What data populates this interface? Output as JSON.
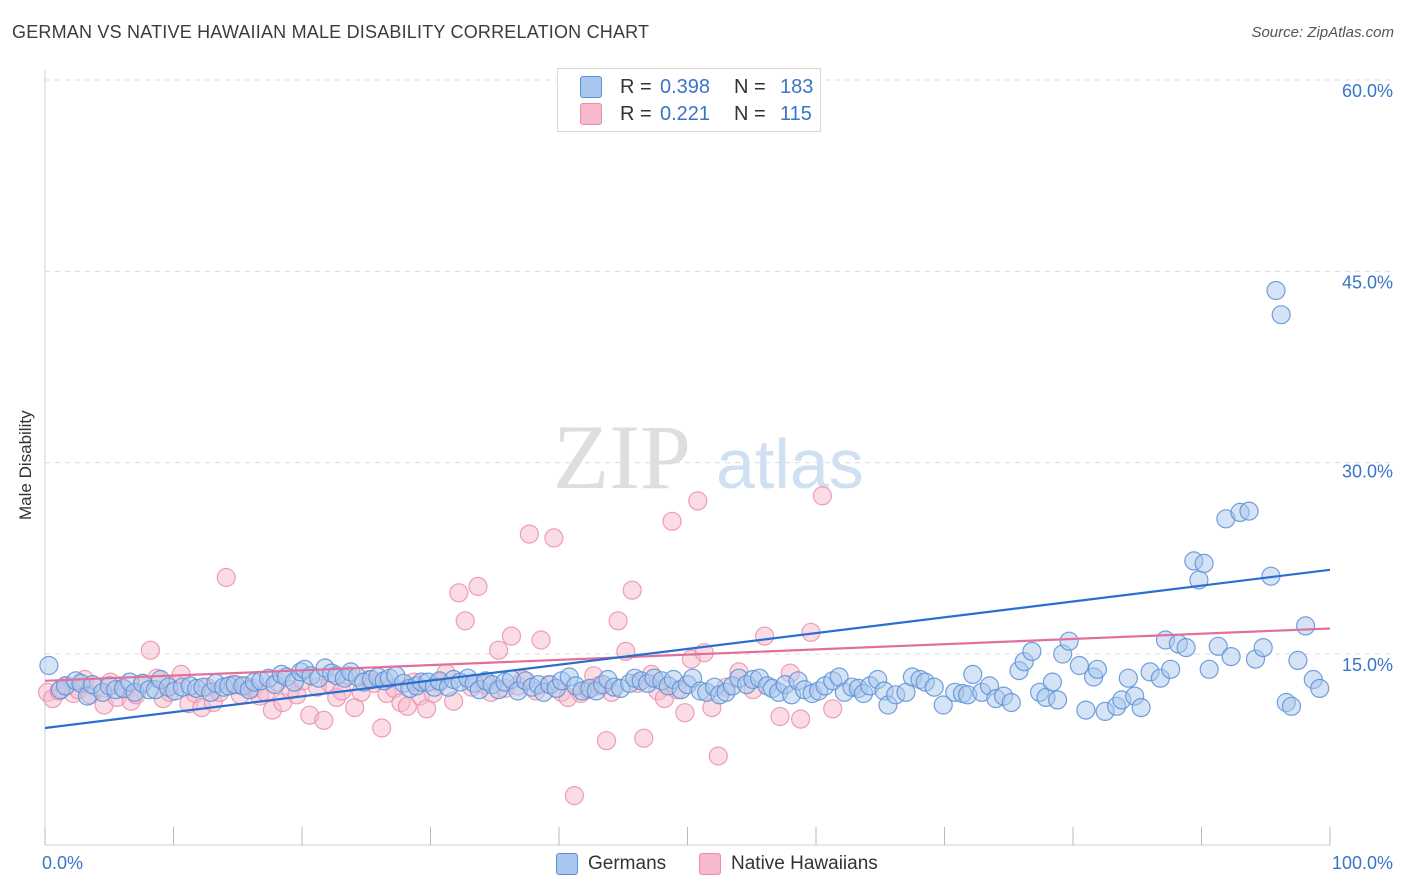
{
  "title": "GERMAN VS NATIVE HAWAIIAN MALE DISABILITY CORRELATION CHART",
  "source": "Source: ZipAtlas.com",
  "watermark": {
    "zip": "ZIP",
    "atlas": "atlas"
  },
  "legend": {
    "r_label": "R =",
    "n_label": "N =",
    "germans": {
      "r": "0.398",
      "n": "183",
      "color": "#a9c7ee"
    },
    "hawaiians": {
      "r": "0.221",
      "n": "115",
      "color": "#f7b9cc"
    }
  },
  "bottom_legend": {
    "germans": "Germans",
    "hawaiians": "Native Hawaiians"
  },
  "chart_data": {
    "type": "scatter",
    "xlabel": "",
    "ylabel": "Male Disability",
    "xlim": [
      0,
      100
    ],
    "ylim": [
      0,
      60
    ],
    "x_tick_labels": [
      "0.0%",
      "100.0%"
    ],
    "y_ticks": [
      15,
      30,
      45,
      60
    ],
    "y_tick_labels": [
      "15.0%",
      "30.0%",
      "45.0%",
      "60.0%"
    ],
    "colors": {
      "germans_fill": "#a9c7ee",
      "germans_stroke": "#5b8fd6",
      "germans_line": "#2a6fd0",
      "hawaiians_fill": "#f7b9cc",
      "hawaiians_stroke": "#e98fac",
      "hawaiians_line": "#e0709a",
      "axis_text": "#3a74c8"
    },
    "series": [
      {
        "name": "Germans",
        "trend": [
          [
            0,
            9.2
          ],
          [
            100,
            21.6
          ]
        ],
        "points": [
          [
            0.3,
            14.1
          ],
          [
            1.2,
            12.2
          ],
          [
            1.6,
            12.5
          ],
          [
            2.4,
            12.9
          ],
          [
            2.8,
            12.7
          ],
          [
            3.3,
            11.7
          ],
          [
            3.7,
            12.6
          ],
          [
            4.5,
            12.0
          ],
          [
            5.0,
            12.5
          ],
          [
            5.5,
            12.2
          ],
          [
            6.1,
            12.3
          ],
          [
            6.6,
            12.8
          ],
          [
            7.0,
            12.0
          ],
          [
            7.6,
            12.7
          ],
          [
            8.1,
            12.2
          ],
          [
            8.6,
            12.2
          ],
          [
            9.0,
            13.0
          ],
          [
            9.6,
            12.4
          ],
          [
            10.1,
            12.1
          ],
          [
            10.7,
            12.4
          ],
          [
            11.3,
            12.5
          ],
          [
            11.8,
            12.3
          ],
          [
            12.3,
            12.4
          ],
          [
            12.9,
            12.0
          ],
          [
            13.3,
            12.7
          ],
          [
            13.9,
            12.4
          ],
          [
            14.3,
            12.5
          ],
          [
            14.8,
            12.6
          ],
          [
            15.4,
            12.5
          ],
          [
            15.9,
            12.2
          ],
          [
            16.3,
            12.8
          ],
          [
            16.8,
            12.9
          ],
          [
            17.4,
            13.1
          ],
          [
            17.9,
            12.6
          ],
          [
            18.4,
            13.4
          ],
          [
            18.8,
            13.2
          ],
          [
            19.4,
            12.8
          ],
          [
            19.9,
            13.6
          ],
          [
            20.2,
            13.8
          ],
          [
            20.7,
            13.3
          ],
          [
            21.3,
            13.1
          ],
          [
            21.8,
            13.9
          ],
          [
            22.3,
            13.5
          ],
          [
            22.7,
            13.3
          ],
          [
            23.3,
            13.1
          ],
          [
            23.8,
            13.6
          ],
          [
            24.3,
            13.2
          ],
          [
            24.8,
            12.8
          ],
          [
            25.4,
            13.0
          ],
          [
            25.9,
            13.2
          ],
          [
            26.4,
            12.9
          ],
          [
            26.8,
            13.1
          ],
          [
            27.3,
            13.3
          ],
          [
            27.9,
            12.7
          ],
          [
            28.4,
            12.3
          ],
          [
            28.9,
            12.5
          ],
          [
            29.3,
            12.8
          ],
          [
            29.8,
            12.8
          ],
          [
            30.3,
            12.4
          ],
          [
            30.7,
            12.9
          ],
          [
            31.4,
            12.4
          ],
          [
            31.8,
            13.0
          ],
          [
            32.3,
            12.8
          ],
          [
            32.9,
            13.1
          ],
          [
            33.4,
            12.7
          ],
          [
            33.8,
            12.2
          ],
          [
            34.3,
            12.9
          ],
          [
            34.8,
            12.6
          ],
          [
            35.3,
            12.2
          ],
          [
            35.8,
            12.8
          ],
          [
            36.3,
            13.0
          ],
          [
            36.8,
            12.1
          ],
          [
            37.4,
            12.9
          ],
          [
            37.9,
            12.4
          ],
          [
            38.4,
            12.6
          ],
          [
            38.8,
            12.0
          ],
          [
            39.3,
            12.6
          ],
          [
            39.8,
            12.3
          ],
          [
            40.2,
            12.9
          ],
          [
            40.8,
            13.2
          ],
          [
            41.3,
            12.5
          ],
          [
            41.8,
            12.1
          ],
          [
            42.4,
            12.3
          ],
          [
            42.9,
            12.1
          ],
          [
            43.4,
            12.6
          ],
          [
            43.8,
            13.0
          ],
          [
            44.3,
            12.4
          ],
          [
            44.8,
            12.3
          ],
          [
            45.5,
            12.7
          ],
          [
            45.9,
            13.1
          ],
          [
            46.4,
            12.9
          ],
          [
            46.9,
            12.7
          ],
          [
            47.4,
            13.1
          ],
          [
            48.0,
            12.9
          ],
          [
            48.5,
            12.5
          ],
          [
            48.9,
            13.0
          ],
          [
            49.5,
            12.2
          ],
          [
            50.0,
            12.6
          ],
          [
            50.4,
            13.1
          ],
          [
            51.0,
            12.1
          ],
          [
            51.5,
            12.0
          ],
          [
            52.1,
            12.4
          ],
          [
            52.5,
            11.8
          ],
          [
            53.0,
            12.0
          ],
          [
            53.5,
            12.5
          ],
          [
            54.0,
            13.1
          ],
          [
            54.6,
            12.6
          ],
          [
            55.1,
            13.0
          ],
          [
            55.6,
            13.1
          ],
          [
            56.2,
            12.5
          ],
          [
            56.6,
            12.3
          ],
          [
            57.1,
            12.0
          ],
          [
            57.6,
            12.6
          ],
          [
            58.1,
            11.8
          ],
          [
            58.6,
            12.9
          ],
          [
            59.1,
            12.2
          ],
          [
            59.7,
            11.9
          ],
          [
            60.2,
            12.1
          ],
          [
            60.7,
            12.5
          ],
          [
            61.3,
            12.9
          ],
          [
            61.8,
            13.2
          ],
          [
            62.2,
            12.0
          ],
          [
            62.8,
            12.4
          ],
          [
            63.3,
            12.3
          ],
          [
            63.7,
            11.9
          ],
          [
            64.2,
            12.5
          ],
          [
            64.8,
            13.0
          ],
          [
            65.3,
            12.1
          ],
          [
            65.6,
            11.0
          ],
          [
            66.2,
            11.8
          ],
          [
            67.0,
            12.0
          ],
          [
            67.5,
            13.2
          ],
          [
            68.1,
            13.0
          ],
          [
            68.5,
            12.8
          ],
          [
            69.2,
            12.4
          ],
          [
            69.9,
            11.0
          ],
          [
            70.8,
            12.0
          ],
          [
            71.4,
            11.9
          ],
          [
            71.8,
            11.8
          ],
          [
            72.2,
            13.4
          ],
          [
            72.9,
            12.0
          ],
          [
            73.5,
            12.5
          ],
          [
            74.0,
            11.5
          ],
          [
            74.6,
            11.7
          ],
          [
            75.2,
            11.2
          ],
          [
            75.8,
            13.7
          ],
          [
            76.2,
            14.4
          ],
          [
            76.8,
            15.2
          ],
          [
            77.4,
            12.0
          ],
          [
            77.9,
            11.6
          ],
          [
            78.4,
            12.8
          ],
          [
            78.8,
            11.4
          ],
          [
            79.2,
            15.0
          ],
          [
            79.7,
            16.0
          ],
          [
            80.5,
            14.1
          ],
          [
            81.0,
            10.6
          ],
          [
            81.6,
            13.2
          ],
          [
            81.9,
            13.8
          ],
          [
            82.5,
            10.5
          ],
          [
            83.4,
            10.9
          ],
          [
            83.8,
            11.4
          ],
          [
            84.3,
            13.1
          ],
          [
            84.8,
            11.7
          ],
          [
            85.3,
            10.8
          ],
          [
            86.0,
            13.6
          ],
          [
            86.8,
            13.1
          ],
          [
            87.2,
            16.1
          ],
          [
            87.6,
            13.8
          ],
          [
            88.2,
            15.8
          ],
          [
            88.8,
            15.5
          ],
          [
            89.4,
            22.3
          ],
          [
            89.8,
            20.8
          ],
          [
            90.2,
            22.1
          ],
          [
            90.6,
            13.8
          ],
          [
            91.3,
            15.6
          ],
          [
            91.9,
            25.6
          ],
          [
            92.3,
            14.8
          ],
          [
            93.0,
            26.1
          ],
          [
            93.7,
            26.2
          ],
          [
            94.2,
            14.6
          ],
          [
            94.8,
            15.5
          ],
          [
            95.4,
            21.1
          ],
          [
            95.8,
            43.5
          ],
          [
            96.2,
            41.6
          ],
          [
            96.6,
            11.2
          ],
          [
            97.0,
            10.9
          ],
          [
            97.5,
            14.5
          ],
          [
            98.1,
            17.2
          ],
          [
            98.7,
            13.0
          ],
          [
            99.2,
            12.3
          ]
        ]
      },
      {
        "name": "Native Hawaiians",
        "trend": [
          [
            0,
            12.9
          ],
          [
            100,
            17.0
          ]
        ],
        "points": [
          [
            0.2,
            12.0
          ],
          [
            0.6,
            11.5
          ],
          [
            1.1,
            12.1
          ],
          [
            1.6,
            12.5
          ],
          [
            2.2,
            11.9
          ],
          [
            2.6,
            12.2
          ],
          [
            3.1,
            13.0
          ],
          [
            3.5,
            11.8
          ],
          [
            4.0,
            12.4
          ],
          [
            4.6,
            11.0
          ],
          [
            5.1,
            12.8
          ],
          [
            5.6,
            11.6
          ],
          [
            6.2,
            12.2
          ],
          [
            6.7,
            11.3
          ],
          [
            7.1,
            11.8
          ],
          [
            7.6,
            12.7
          ],
          [
            8.2,
            15.3
          ],
          [
            8.7,
            13.1
          ],
          [
            9.2,
            11.5
          ],
          [
            9.7,
            12.0
          ],
          [
            10.2,
            12.6
          ],
          [
            10.6,
            13.4
          ],
          [
            11.2,
            11.1
          ],
          [
            11.7,
            11.9
          ],
          [
            12.2,
            10.8
          ],
          [
            12.6,
            12.4
          ],
          [
            13.1,
            11.2
          ],
          [
            13.6,
            12.0
          ],
          [
            14.1,
            21.0
          ],
          [
            14.6,
            12.6
          ],
          [
            15.2,
            11.8
          ],
          [
            15.6,
            12.5
          ],
          [
            16.2,
            12.3
          ],
          [
            16.7,
            11.7
          ],
          [
            17.2,
            12.0
          ],
          [
            17.7,
            10.6
          ],
          [
            18.1,
            12.8
          ],
          [
            18.5,
            11.2
          ],
          [
            19.1,
            12.2
          ],
          [
            19.6,
            11.8
          ],
          [
            20.1,
            12.9
          ],
          [
            20.6,
            10.2
          ],
          [
            21.2,
            12.4
          ],
          [
            21.7,
            9.8
          ],
          [
            22.2,
            12.7
          ],
          [
            22.7,
            11.6
          ],
          [
            23.1,
            12.1
          ],
          [
            23.6,
            13.3
          ],
          [
            24.1,
            10.8
          ],
          [
            24.6,
            12.0
          ],
          [
            25.2,
            13.0
          ],
          [
            25.6,
            12.7
          ],
          [
            26.2,
            9.2
          ],
          [
            26.6,
            11.9
          ],
          [
            27.2,
            12.3
          ],
          [
            27.7,
            11.2
          ],
          [
            28.2,
            10.9
          ],
          [
            28.7,
            12.8
          ],
          [
            29.2,
            11.7
          ],
          [
            29.7,
            10.7
          ],
          [
            30.2,
            11.9
          ],
          [
            30.7,
            12.8
          ],
          [
            31.2,
            13.5
          ],
          [
            31.8,
            11.3
          ],
          [
            32.2,
            19.8
          ],
          [
            32.7,
            17.6
          ],
          [
            33.2,
            12.4
          ],
          [
            33.7,
            20.3
          ],
          [
            34.2,
            12.6
          ],
          [
            34.7,
            12.0
          ],
          [
            35.3,
            15.3
          ],
          [
            35.8,
            12.3
          ],
          [
            36.3,
            16.4
          ],
          [
            36.8,
            12.5
          ],
          [
            37.2,
            13.0
          ],
          [
            37.7,
            24.4
          ],
          [
            38.2,
            12.1
          ],
          [
            38.6,
            16.1
          ],
          [
            39.2,
            12.6
          ],
          [
            39.6,
            24.1
          ],
          [
            40.2,
            12.0
          ],
          [
            40.7,
            11.6
          ],
          [
            41.2,
            3.9
          ],
          [
            41.7,
            11.9
          ],
          [
            42.2,
            12.2
          ],
          [
            42.7,
            13.3
          ],
          [
            43.1,
            12.5
          ],
          [
            43.7,
            8.2
          ],
          [
            44.1,
            12.0
          ],
          [
            44.6,
            17.6
          ],
          [
            45.2,
            15.2
          ],
          [
            45.7,
            20.0
          ],
          [
            46.1,
            12.7
          ],
          [
            46.6,
            8.4
          ],
          [
            47.2,
            13.4
          ],
          [
            47.7,
            12.1
          ],
          [
            48.2,
            11.5
          ],
          [
            48.8,
            25.4
          ],
          [
            49.2,
            12.2
          ],
          [
            49.8,
            10.4
          ],
          [
            50.3,
            14.6
          ],
          [
            50.8,
            27.0
          ],
          [
            51.3,
            15.1
          ],
          [
            51.9,
            10.8
          ],
          [
            52.4,
            7.0
          ],
          [
            53.0,
            12.4
          ],
          [
            54.0,
            13.6
          ],
          [
            55.1,
            12.2
          ],
          [
            56.0,
            16.4
          ],
          [
            57.2,
            10.1
          ],
          [
            58.0,
            13.5
          ],
          [
            58.8,
            9.9
          ],
          [
            59.6,
            16.7
          ],
          [
            60.5,
            27.4
          ],
          [
            61.3,
            10.7
          ]
        ]
      }
    ]
  }
}
